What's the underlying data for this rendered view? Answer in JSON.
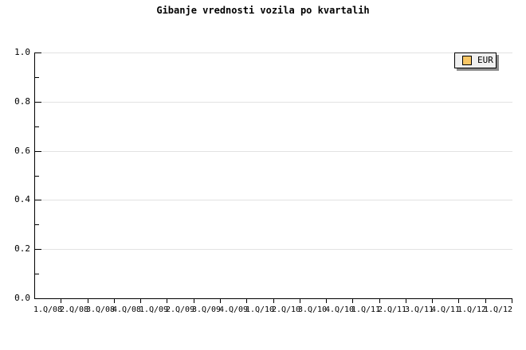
{
  "title": "Gibanje vrednosti vozila po kvartalih",
  "legend": {
    "label": "EUR",
    "swatch_color": "#f8c665",
    "background": "#f0f0f0",
    "shadow_color": "#8c8c8c"
  },
  "colors": {
    "background": "#ffffff",
    "axis": "#000000",
    "grid": "#e2e2e2",
    "text": "#000000"
  },
  "y_axis": {
    "tick_labels": [
      "0.0",
      "0.2",
      "0.4",
      "0.6",
      "0.8",
      "1.0"
    ],
    "label_step": 0.2,
    "minor_step": 0.1,
    "range_min": 0,
    "range_max": 1
  },
  "x_axis": {
    "labels": [
      "1.Q/08",
      "2.Q/08",
      "3.Q/08",
      "4.Q/08",
      "1.Q/09",
      "2.Q/09",
      "3.Q/09",
      "4.Q/09",
      "1.Q/10",
      "2.Q/10",
      "3.Q/10",
      "4.Q/10",
      "1.Q/11",
      "2.Q/11",
      "3.Q/11",
      "4.Q/11",
      "1.Q/12",
      "1.Q/12"
    ]
  },
  "chart_data": {
    "type": "line",
    "title": "Gibanje vrednosti vozila po kvartalih",
    "categories": [
      "1.Q/08",
      "2.Q/08",
      "3.Q/08",
      "4.Q/08",
      "1.Q/09",
      "2.Q/09",
      "3.Q/09",
      "4.Q/09",
      "1.Q/10",
      "2.Q/10",
      "3.Q/10",
      "4.Q/10",
      "1.Q/11",
      "2.Q/11",
      "3.Q/11",
      "4.Q/11",
      "1.Q/12",
      "1.Q/12"
    ],
    "series": [
      {
        "name": "EUR",
        "color": "#f8c665",
        "values": []
      }
    ],
    "xlabel": "",
    "ylabel": "",
    "ylim": [
      0,
      1.0
    ],
    "ytick_step": 0.2,
    "grid": true,
    "legend_position": "top-right"
  }
}
